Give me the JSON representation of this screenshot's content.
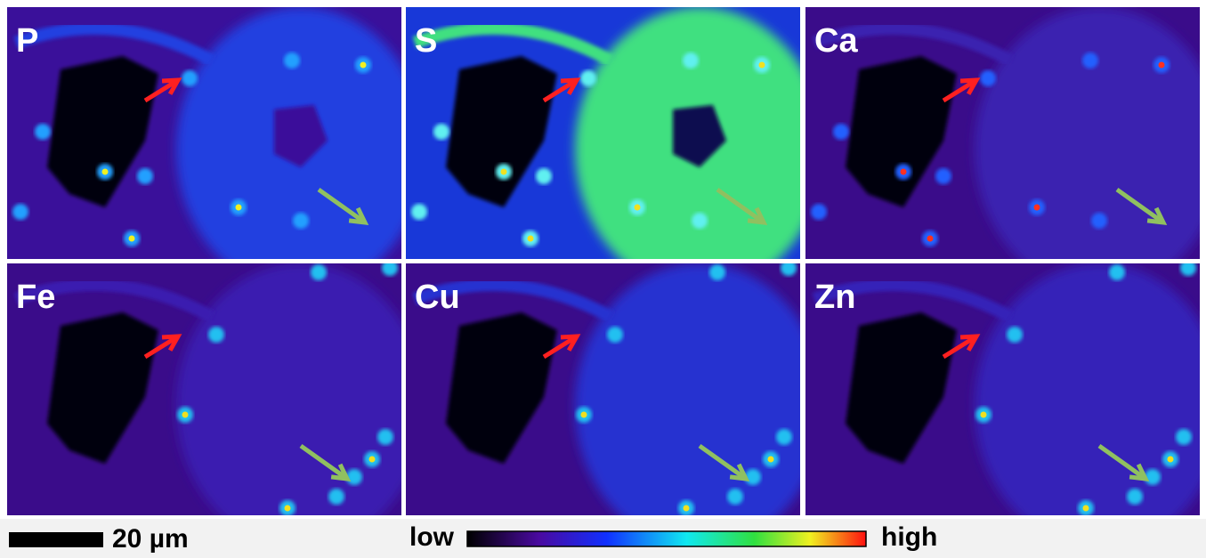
{
  "panels": [
    {
      "label": "P"
    },
    {
      "label": "S"
    },
    {
      "label": "Ca"
    },
    {
      "label": "Fe"
    },
    {
      "label": "Cu"
    },
    {
      "label": "Zn"
    }
  ],
  "scale_bar": {
    "label": "20 µm"
  },
  "colorbar": {
    "low": "low",
    "high": "high"
  }
}
